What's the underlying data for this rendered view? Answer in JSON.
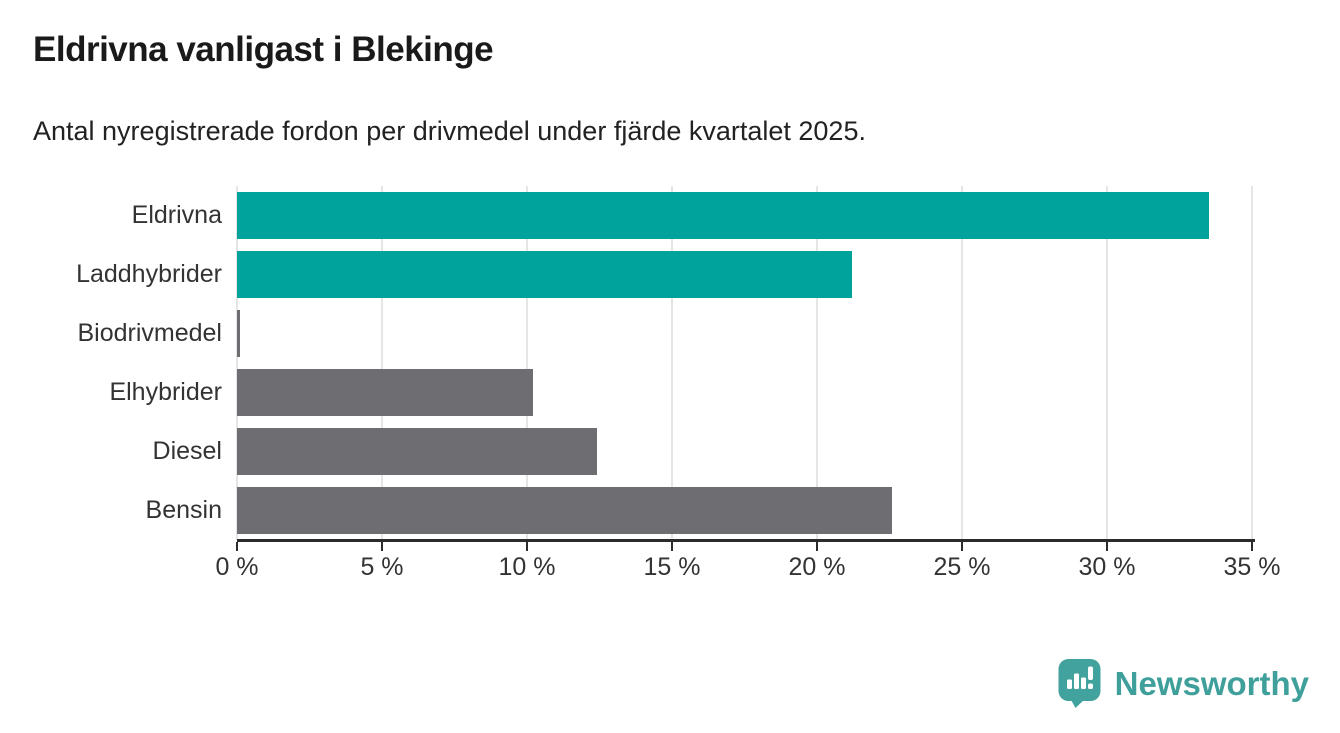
{
  "title": "Eldrivna vanligast i Blekinge",
  "subtitle": "Antal nyregistrerade fordon per drivmedel under fjärde kvartalet 2025.",
  "chart_data": {
    "type": "bar",
    "orientation": "horizontal",
    "title": "Eldrivna vanligast i Blekinge",
    "subtitle": "Antal nyregistrerade fordon per drivmedel under fjärde kvartalet 2025.",
    "categories": [
      "Eldrivna",
      "Laddhybrider",
      "Biodrivmedel",
      "Elhybrider",
      "Diesel",
      "Bensin"
    ],
    "values": [
      33.5,
      21.2,
      0.1,
      10.2,
      12.4,
      22.6
    ],
    "unit": "%",
    "bar_colors": [
      "#00a39b",
      "#00a39b",
      "#6d6d72",
      "#6d6d72",
      "#6d6d72",
      "#6d6d72"
    ],
    "xlim": [
      0,
      35
    ],
    "x_tick_values": [
      0,
      5,
      10,
      15,
      20,
      25,
      30,
      35
    ],
    "x_tick_labels": [
      "0 %",
      "5 %",
      "10 %",
      "15 %",
      "20 %",
      "25 %",
      "30 %",
      "35 %"
    ],
    "xlabel": "",
    "ylabel": "",
    "grid": true,
    "legend": false
  },
  "colors": {
    "highlight_bar": "#00a39b",
    "default_bar": "#6d6d72",
    "gridline": "#e5e5e5",
    "axis": "#2b2b2b",
    "text": "#333333",
    "brand": "#3fa09b"
  },
  "branding": {
    "logo_text": "Newsworthy"
  }
}
